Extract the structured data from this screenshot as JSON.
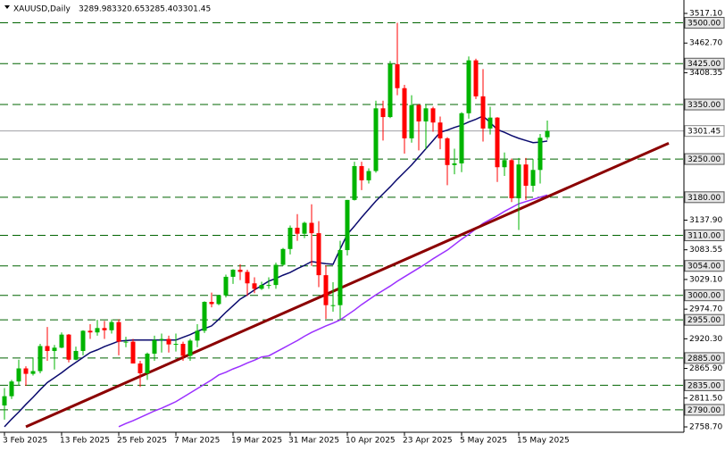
{
  "chart_data": {
    "type": "candlestick",
    "symbol": "XAUUSD,Daily",
    "ohlc_labels": [
      "3289.98",
      "3320.65",
      "3285.40",
      "3301.45"
    ],
    "categories": [
      "3 Feb 2025",
      null,
      null,
      null,
      null,
      null,
      null,
      null,
      "13 Feb 2025",
      null,
      null,
      null,
      null,
      null,
      null,
      null,
      "25 Feb 2025",
      null,
      null,
      null,
      null,
      null,
      null,
      null,
      "7 Mar 2025",
      null,
      null,
      null,
      null,
      null,
      null,
      null,
      "19 Mar 2025",
      null,
      null,
      null,
      null,
      null,
      null,
      null,
      "31 Mar 2025",
      null,
      null,
      null,
      null,
      null,
      null,
      null,
      "10 Apr 2025",
      null,
      null,
      null,
      null,
      null,
      null,
      null,
      "23 Apr 2025",
      null,
      null,
      null,
      null,
      null,
      null,
      null,
      "5 May 2025",
      null,
      null,
      null,
      null,
      null,
      null,
      null,
      "15 May 2025",
      null,
      null,
      null,
      null
    ],
    "open": [
      2798,
      2815,
      2842,
      2866,
      2856,
      2861,
      2907,
      2898,
      2904,
      2928,
      2882,
      2898,
      2935,
      2932,
      2940,
      2936,
      2951,
      2915,
      2915,
      2875,
      2857,
      2893,
      2918,
      2920,
      2910,
      2911,
      2889,
      2917,
      2935,
      2988,
      2984,
      3000,
      3034,
      3047,
      3043,
      3022,
      3012,
      3019,
      3019,
      3056,
      3085,
      3124,
      3113,
      3133,
      3114,
      3037,
      2982,
      2982,
      3083,
      3175,
      3237,
      3211,
      3228,
      3343,
      3327,
      3424,
      3380,
      3288,
      3349,
      3319,
      3343,
      3317,
      3288,
      3239,
      3242,
      3334,
      3431,
      3365,
      3306,
      3326,
      3235,
      3248,
      3178,
      3240,
      3201,
      3230,
      3289.98
    ],
    "high": [
      2830,
      2845,
      2882,
      2870,
      2886,
      2911,
      2942,
      2909,
      2932,
      2929,
      2906,
      2936,
      2947,
      2955,
      2953,
      2956,
      2956,
      2924,
      2920,
      2880,
      2895,
      2926,
      2930,
      2926,
      2930,
      2915,
      2920,
      2947,
      2989,
      3005,
      3001,
      3038,
      3048,
      3057,
      3047,
      3033,
      3025,
      3033,
      3060,
      3087,
      3128,
      3149,
      3135,
      3167,
      3136,
      3055,
      3024,
      3100,
      3175,
      3245,
      3245,
      3233,
      3357,
      3357,
      3430,
      3500,
      3386,
      3367,
      3351,
      3350,
      3346,
      3328,
      3290,
      3269,
      3336,
      3438,
      3434,
      3415,
      3346,
      3327,
      3262,
      3251,
      3252,
      3252,
      3250,
      3296,
      3320.65
    ],
    "low": [
      2772,
      2810,
      2835,
      2834,
      2853,
      2857,
      2880,
      2864,
      2903,
      2877,
      2881,
      2890,
      2920,
      2926,
      2920,
      2930,
      2890,
      2905,
      2876,
      2832,
      2845,
      2880,
      2895,
      2895,
      2897,
      2880,
      2880,
      2905,
      2931,
      2978,
      2982,
      2996,
      3021,
      3028,
      2999,
      3004,
      3010,
      3012,
      3012,
      3054,
      3075,
      3100,
      3105,
      3054,
      3015,
      2957,
      2970,
      2955,
      3073,
      3174,
      3193,
      3205,
      3225,
      3284,
      3325,
      3367,
      3260,
      3280,
      3266,
      3268,
      3300,
      3268,
      3202,
      3222,
      3226,
      3324,
      3360,
      3282,
      3295,
      3208,
      3219,
      3171,
      3120,
      3175,
      3190,
      3205,
      3285.4
    ],
    "close": [
      2815,
      2842,
      2866,
      2856,
      2861,
      2907,
      2898,
      2904,
      2928,
      2882,
      2898,
      2935,
      2932,
      2940,
      2936,
      2951,
      2915,
      2915,
      2875,
      2857,
      2893,
      2918,
      2920,
      2910,
      2911,
      2889,
      2917,
      2935,
      2988,
      2984,
      3000,
      3034,
      3047,
      3043,
      3022,
      3012,
      3019,
      3019,
      3056,
      3085,
      3124,
      3113,
      3133,
      3114,
      3037,
      2982,
      2982,
      3083,
      3175,
      3237,
      3211,
      3228,
      3343,
      3327,
      3424,
      3380,
      3288,
      3349,
      3319,
      3343,
      3317,
      3288,
      3239,
      3242,
      3334,
      3431,
      3365,
      3306,
      3326,
      3235,
      3248,
      3178,
      3240,
      3201,
      3230,
      3289,
      3301.45
    ],
    "up_color": "#00b400",
    "down_color": "#ff0000",
    "ylim": [
      2748.9,
      3541.7
    ],
    "yticks": [
      {
        "value": 3517.1,
        "label": "3517.10"
      },
      {
        "value": 3462.7,
        "label": "3462.70"
      },
      3408.35,
      {
        "value": 3137.9,
        "label": "3137.90"
      },
      3083.55,
      {
        "value": 3029.1,
        "label": "3029.10"
      },
      {
        "value": 2974.7,
        "label": "2974.70"
      },
      {
        "value": 2920.3,
        "label": "2920.30"
      },
      {
        "value": 2865.9,
        "label": "2865.90"
      },
      {
        "value": 2811.5,
        "label": "2811.50"
      },
      {
        "value": 2758.7,
        "label": "2758.70"
      }
    ],
    "levels": [
      {
        "value": 3500,
        "label": "3500.00"
      },
      {
        "value": 3425,
        "label": "3425.00"
      },
      {
        "value": 3350,
        "label": "3350.00"
      },
      {
        "value": 3250,
        "label": "3250.00"
      },
      {
        "value": 3180,
        "label": "3180.00"
      },
      {
        "value": 3110,
        "label": "3110.00"
      },
      {
        "value": 3054,
        "label": "3054.00"
      },
      {
        "value": 3000,
        "label": "3000.00"
      },
      {
        "value": 2955,
        "label": "2955.00"
      },
      {
        "value": 2885,
        "label": "2885.00"
      },
      {
        "value": 2835,
        "label": "2835.00"
      },
      {
        "value": 2790,
        "label": "2790.00"
      }
    ],
    "level_color": "#006400",
    "current_price": 3301.45,
    "moving_averages": [
      {
        "color": "#0a0a6e",
        "values": [
          2759,
          2773,
          2786,
          2800,
          2813,
          2827,
          2840,
          2849,
          2858,
          2868,
          2877,
          2886,
          2895,
          2900,
          2906,
          2911,
          2916,
          2917,
          2918,
          2918,
          2918,
          2918,
          2918,
          2918,
          2918,
          2923,
          2928,
          2934,
          2939,
          2944,
          2956,
          2969,
          2981,
          2993,
          3001,
          3010,
          3018,
          3026,
          3031,
          3037,
          3042,
          3049,
          3055,
          3062,
          3060,
          3058,
          3057,
          3085,
          3112,
          3127,
          3143,
          3158,
          3173,
          3186,
          3199,
          3213,
          3226,
          3239,
          3254,
          3269,
          3284,
          3299,
          3303,
          3308,
          3312,
          3318,
          3323,
          3329,
          3317,
          3304,
          3299,
          3293,
          3288,
          3284,
          3280,
          3281,
          3283
        ]
      },
      {
        "color": "#9b30ff",
        "values": [
          null,
          null,
          null,
          null,
          null,
          null,
          null,
          null,
          null,
          null,
          null,
          null,
          null,
          null,
          null,
          null,
          2759,
          2765,
          2770,
          2776,
          2782,
          2788,
          2793,
          2799,
          2805,
          2813,
          2821,
          2829,
          2837,
          2845,
          2854,
          2859,
          2865,
          2870,
          2876,
          2881,
          2887,
          2889,
          2896,
          2903,
          2910,
          2917,
          2925,
          2932,
          2938,
          2944,
          2949,
          2955,
          2964,
          2973,
          2983,
          2992,
          3001,
          3009,
          3017,
          3026,
          3034,
          3042,
          3050,
          3058,
          3067,
          3075,
          3083,
          3093,
          3103,
          3112,
          3122,
          3132,
          3139,
          3146,
          3154,
          3161,
          3168,
          3172,
          3176,
          3180,
          3184
        ]
      }
    ],
    "trendline": {
      "color": "#8b0000",
      "x": [
        3,
        93
      ],
      "values": [
        2759,
        3279
      ]
    }
  }
}
